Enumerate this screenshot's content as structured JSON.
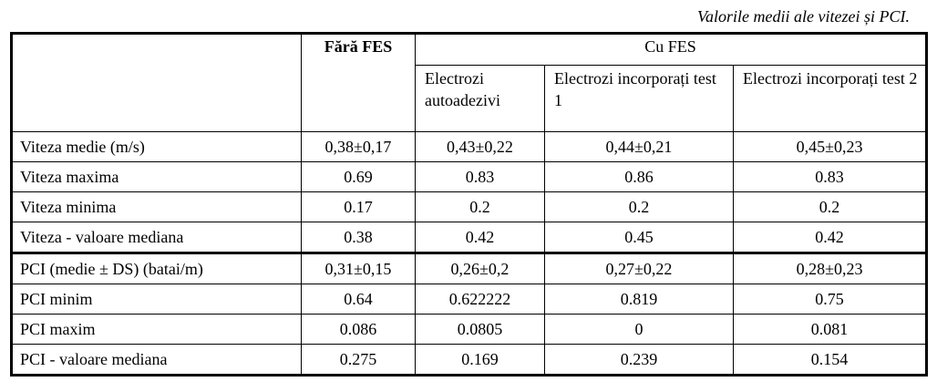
{
  "caption": "Valorile medii ale vitezei și PCI.",
  "header": {
    "fara_fes": "Fără FES",
    "cu_fes": "Cu FES",
    "sub": [
      "Electrozi autoadezivi",
      "Electrozi incorporați test 1",
      "Electrozi incorporați test 2"
    ]
  },
  "rows": [
    [
      "Viteza medie (m/s)",
      "0,38±0,17",
      "0,43±0,22",
      "0,44±0,21",
      "0,45±0,23"
    ],
    [
      "Viteza maxima",
      "0.69",
      "0.83",
      "0.86",
      "0.83"
    ],
    [
      "Viteza minima",
      "0.17",
      "0.2",
      "0.2",
      "0.2"
    ],
    [
      "Viteza - valoare mediana",
      "0.38",
      "0.42",
      "0.45",
      "0.42"
    ],
    [
      "PCI (medie ± DS) (batai/m)",
      "0,31±0,15",
      "0,26±0,2",
      "0,27±0,22",
      "0,28±0,23"
    ],
    [
      "PCI minim",
      "0.64",
      "0.622222",
      "0.819",
      "0.75"
    ],
    [
      "PCI maxim",
      "0.086",
      "0.0805",
      "0",
      "0.081"
    ],
    [
      "PCI - valoare mediana",
      "0.275",
      "0.169",
      "0.239",
      "0.154"
    ]
  ]
}
